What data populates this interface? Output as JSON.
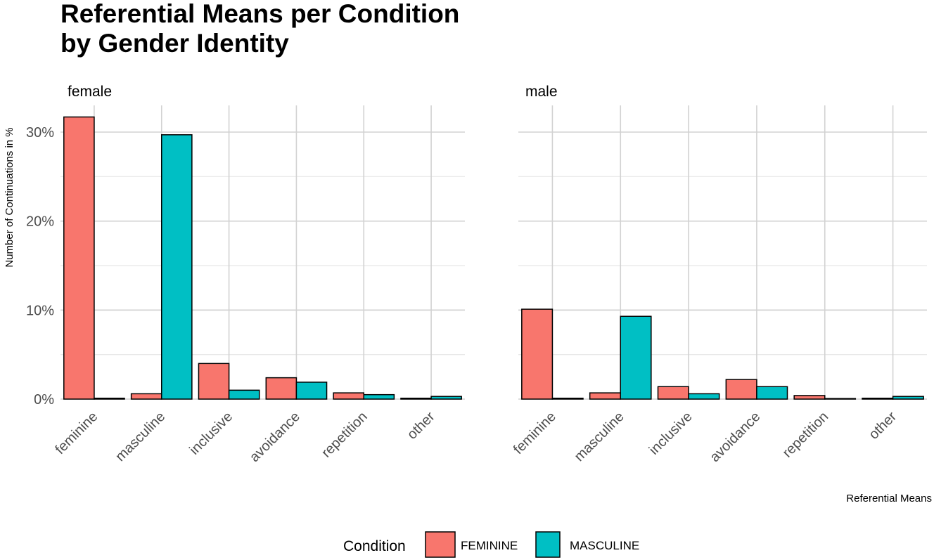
{
  "chart_data": {
    "type": "bar",
    "title": "Referential Means per Condition by Gender Identity",
    "title_lines": [
      "Referential Means per Condition",
      "by Gender Identity"
    ],
    "xlabel": "Referential Means",
    "ylabel": "Number of Continuations in %",
    "ylim": [
      0,
      33
    ],
    "yticks": [
      0,
      10,
      20,
      30
    ],
    "ytick_labels": [
      "0%",
      "10%",
      "20%",
      "30%"
    ],
    "categories": [
      "feminine",
      "masculine",
      "inclusive",
      "avoidance",
      "repetition",
      "other"
    ],
    "legend": {
      "title": "Condition",
      "position": "bottom",
      "entries": [
        {
          "name": "FEMININE",
          "color": "#F8766D"
        },
        {
          "name": "MASCULINE",
          "color": "#00BFC4"
        }
      ]
    },
    "facets": [
      {
        "label": "female",
        "series": [
          {
            "name": "FEMININE",
            "color": "#F8766D",
            "values": [
              31.7,
              0.6,
              4.0,
              2.4,
              0.7,
              0.1
            ]
          },
          {
            "name": "MASCULINE",
            "color": "#00BFC4",
            "values": [
              0.1,
              29.7,
              1.0,
              1.9,
              0.5,
              0.3
            ]
          }
        ]
      },
      {
        "label": "male",
        "series": [
          {
            "name": "FEMININE",
            "color": "#F8766D",
            "values": [
              10.1,
              0.7,
              1.4,
              2.2,
              0.4,
              0.1
            ]
          },
          {
            "name": "MASCULINE",
            "color": "#00BFC4",
            "values": [
              0.1,
              9.3,
              0.6,
              1.4,
              0.05,
              0.3
            ]
          }
        ]
      }
    ]
  }
}
